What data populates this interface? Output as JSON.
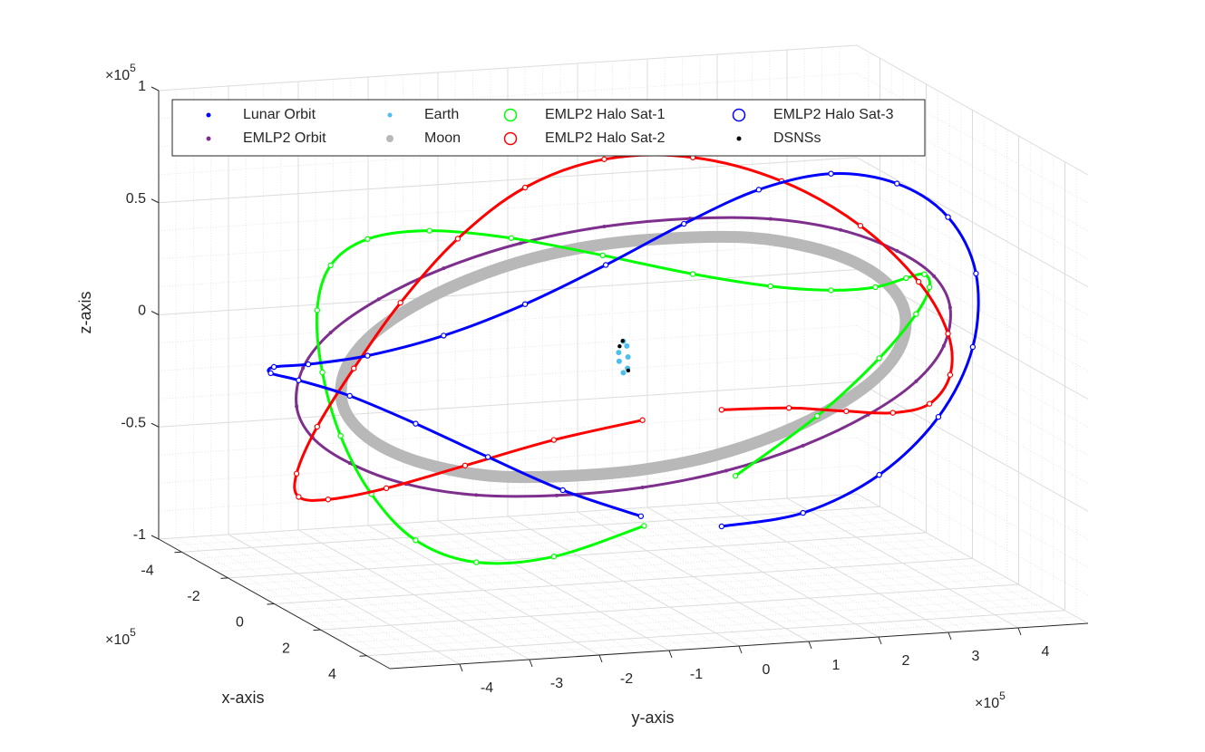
{
  "chart_data": {
    "type": "scatter3d",
    "xlabel": "x-axis",
    "ylabel": "y-axis",
    "zlabel": "z-axis",
    "x_multiplier": {
      "base": "×10",
      "exponent": "5"
    },
    "y_multiplier": {
      "base": "×10",
      "exponent": "5"
    },
    "z_multiplier": {
      "base": "×10",
      "exponent": "5"
    },
    "xlim": [
      -5,
      5
    ],
    "ylim": [
      -5,
      5
    ],
    "zlim": [
      -1,
      1
    ],
    "xticks": [
      -4,
      -2,
      0,
      2,
      4
    ],
    "yticks": [
      -4,
      -3,
      -2,
      -1,
      0,
      1,
      2,
      3,
      4
    ],
    "zticks": [
      -1,
      -0.5,
      0,
      0.5,
      1
    ],
    "grid": true,
    "minor_grid": true,
    "legend": {
      "location": "north",
      "columns": 4
    },
    "series": [
      {
        "name": "Lunar Orbit",
        "color": "#0000ff",
        "marker": ".",
        "closed": true,
        "x": [
          3.84,
          3.33,
          1.92,
          0,
          -1.92,
          -3.33,
          -3.84,
          -3.33,
          -1.92,
          0,
          1.92,
          3.33
        ],
        "y": [
          0,
          1.92,
          3.33,
          3.84,
          3.33,
          1.92,
          0,
          -1.92,
          -3.33,
          -3.84,
          -3.33,
          -1.92
        ],
        "z": [
          -0.22,
          -0.07,
          0.09,
          0.23,
          0.31,
          0.3,
          0.22,
          0.07,
          -0.09,
          -0.23,
          -0.31,
          -0.3
        ]
      },
      {
        "name": "EMLP2 Orbit",
        "color": "#7e2f8e",
        "marker": ".",
        "closed": true,
        "x": [
          4.45,
          4.3,
          3.85,
          3.15,
          2.23,
          1.15,
          0,
          -1.15,
          -2.23,
          -3.15,
          -3.85,
          -4.3,
          -4.45,
          -4.3,
          -3.85,
          -3.15,
          -2.23,
          -1.15,
          0,
          1.15,
          2.23,
          3.15,
          3.85,
          4.3
        ],
        "y": [
          0,
          1.15,
          2.23,
          3.15,
          3.85,
          4.3,
          4.45,
          4.3,
          3.85,
          3.15,
          2.23,
          1.15,
          0,
          -1.15,
          -2.23,
          -3.15,
          -3.85,
          -4.3,
          -4.45,
          -4.3,
          -3.85,
          -3.15,
          -2.23,
          -1.15
        ],
        "z": [
          -0.25,
          -0.17,
          -0.08,
          0.01,
          0.1,
          0.2,
          0.27,
          0.32,
          0.36,
          0.37,
          0.35,
          0.31,
          0.25,
          0.17,
          0.08,
          -0.01,
          -0.1,
          -0.2,
          -0.27,
          -0.32,
          -0.36,
          -0.37,
          -0.35,
          -0.31
        ]
      },
      {
        "name": "Earth",
        "color": "#4dbeee",
        "marker": ".",
        "x": [
          0,
          0.03,
          -0.03,
          0.02,
          -0.02,
          0.03,
          0
        ],
        "y": [
          0,
          0.05,
          -0.05,
          0.06,
          -0.06,
          0.04,
          0
        ],
        "z": [
          -0.07,
          -0.05,
          -0.02,
          0,
          0.02,
          0.05,
          0.07
        ]
      },
      {
        "name": "Moon",
        "color": "#b8b8b8",
        "marker": ".",
        "closed": true,
        "x": [
          3.84,
          3.71,
          3.33,
          2.72,
          1.92,
          0.99,
          0,
          -0.99,
          -1.92,
          -2.72,
          -3.33,
          -3.71,
          -3.84,
          -3.71,
          -3.33,
          -2.72,
          -1.92,
          -0.99,
          0,
          0.99,
          1.92,
          2.72,
          3.33,
          3.71
        ],
        "y": [
          0,
          0.99,
          1.92,
          2.72,
          3.33,
          3.71,
          3.84,
          3.71,
          3.33,
          2.72,
          1.92,
          0.99,
          0,
          -0.99,
          -1.92,
          -2.72,
          -3.33,
          -3.71,
          -3.84,
          -3.71,
          -3.33,
          -2.72,
          -1.92,
          -0.99
        ],
        "z": [
          -0.22,
          -0.15,
          -0.07,
          0.01,
          0.09,
          0.17,
          0.23,
          0.28,
          0.31,
          0.32,
          0.3,
          0.27,
          0.22,
          0.15,
          0.07,
          -0.01,
          -0.09,
          -0.17,
          -0.23,
          -0.28,
          -0.31,
          -0.32,
          -0.3,
          -0.27
        ]
      },
      {
        "name": "EMLP2 Halo Sat-1",
        "color": "#00ff00",
        "marker": "o",
        "x": [
          4.85,
          4.64,
          4.03,
          3.15,
          2.13,
          1.06,
          0,
          -1.06,
          -2.13,
          -3.15,
          -4.03,
          -4.64,
          -4.85,
          -4.64,
          -4.03,
          -3.15,
          -2.13,
          -1.06,
          0,
          1.06,
          2.13,
          3.15,
          4.03,
          4.64
        ],
        "y": [
          0,
          1.24,
          2.33,
          3.15,
          3.68,
          3.96,
          4.05,
          3.96,
          3.68,
          3.15,
          2.33,
          1.24,
          0,
          -1.24,
          -2.33,
          -3.15,
          -3.68,
          -3.96,
          -4.05,
          -3.96,
          -3.68,
          -3.15,
          -2.33,
          -1.24
        ],
        "z": [
          -0.25,
          -0.02,
          0.18,
          0.31,
          0.36,
          0.35,
          0.27,
          0.17,
          0.1,
          0.07,
          0.09,
          0.16,
          0.25,
          0.32,
          0.34,
          0.29,
          0.16,
          -0.05,
          -0.27,
          -0.47,
          -0.62,
          -0.67,
          -0.61,
          -0.46
        ]
      },
      {
        "name": "EMLP2 Halo Sat-2",
        "color": "#ff0000",
        "marker": "o",
        "x": [
          4.25,
          3.96,
          3.51,
          2.9,
          2.13,
          1.15,
          0,
          -1.24,
          -2.43,
          -3.39,
          -4.03,
          -4.3,
          -4.25,
          -3.96,
          -3.51,
          -2.9,
          -2.13,
          -1.15,
          0,
          1.24,
          2.43,
          3.39,
          4.03,
          4.3
        ],
        "y": [
          0,
          1.06,
          2.03,
          2.9,
          3.68,
          4.3,
          4.65,
          4.64,
          4.2,
          3.39,
          2.33,
          1.15,
          0,
          -1.06,
          -2.03,
          -2.9,
          -3.68,
          -4.3,
          -4.65,
          -4.64,
          -4.2,
          -3.39,
          -2.33,
          -1.15
        ],
        "z": [
          0.01,
          -0.02,
          -0.08,
          -0.14,
          -0.16,
          -0.1,
          0.01,
          0.17,
          0.36,
          0.52,
          0.61,
          0.61,
          0.51,
          0.32,
          0.08,
          -0.16,
          -0.36,
          -0.5,
          -0.53,
          -0.47,
          -0.36,
          -0.22,
          -0.09,
          -0.01
        ]
      },
      {
        "name": "EMLP2 Halo Sat-3",
        "color": "#0000ff",
        "marker": "o",
        "x": [
          4.25,
          4.3,
          4.03,
          3.39,
          2.43,
          1.24,
          0,
          -1.15,
          -2.13,
          -2.9,
          -3.51,
          -3.96,
          -4.25,
          -4.3,
          -4.03,
          -3.39,
          -2.43,
          -1.24,
          0,
          1.15,
          2.13,
          2.9,
          3.51,
          3.96
        ],
        "y": [
          0,
          1.15,
          2.33,
          3.39,
          4.2,
          4.64,
          4.65,
          4.3,
          3.68,
          2.9,
          2.03,
          1.06,
          0,
          -1.15,
          -2.33,
          -3.39,
          -4.2,
          -4.64,
          -4.65,
          -4.3,
          -3.68,
          -2.9,
          -2.03,
          -1.06
        ],
        "z": [
          -0.51,
          -0.47,
          -0.34,
          -0.14,
          0.1,
          0.35,
          0.53,
          0.62,
          0.62,
          0.52,
          0.35,
          0.16,
          -0.01,
          -0.13,
          -0.18,
          -0.16,
          -0.1,
          -0.05,
          -0.01,
          -0.02,
          -0.1,
          -0.22,
          -0.35,
          -0.46
        ]
      },
      {
        "name": "DSNSs",
        "color": "#000000",
        "marker": ".",
        "x": [
          0.02,
          0.03,
          -0.03
        ],
        "y": [
          -0.06,
          0.06,
          0
        ],
        "z": [
          0.05,
          -0.06,
          0.07
        ]
      }
    ]
  }
}
